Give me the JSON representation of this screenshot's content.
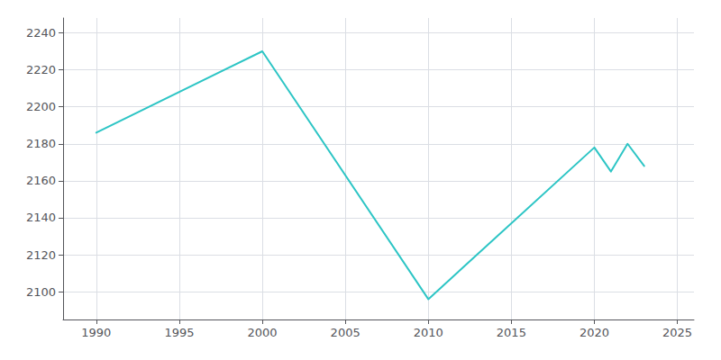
{
  "chart_data": {
    "type": "line",
    "x": [
      1990,
      2000,
      2010,
      2020,
      2021,
      2022,
      2023
    ],
    "values": [
      2186,
      2230,
      2096,
      2178,
      2165,
      2180,
      2168
    ],
    "color": "#2DC5C5",
    "xlim": [
      1988,
      2026
    ],
    "xticks": [
      1990,
      1995,
      2000,
      2005,
      2010,
      2015,
      2020,
      2025
    ],
    "ylim": [
      2085,
      2248
    ],
    "yticks": [
      2100,
      2120,
      2140,
      2160,
      2180,
      2200,
      2220,
      2240
    ],
    "grid": true
  }
}
